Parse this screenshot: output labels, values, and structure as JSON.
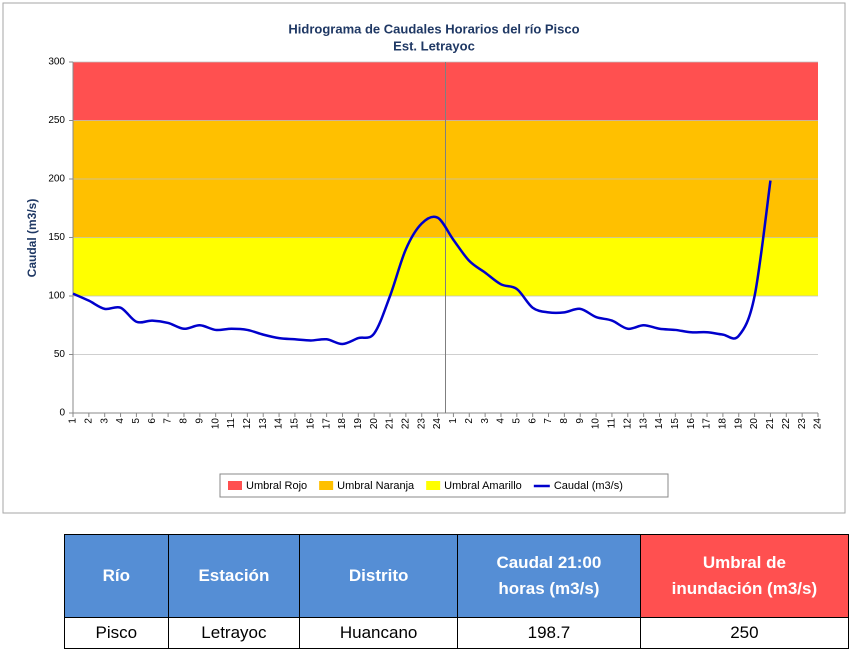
{
  "chart_data": {
    "type": "line",
    "title": "Hidrograma de Caudales Horarios del río Pisco",
    "subtitle": "Est. Letrayoc",
    "y_label": "Caudal  (m3/s)",
    "categories": [
      "1",
      "2",
      "3",
      "4",
      "5",
      "6",
      "7",
      "8",
      "9",
      "10",
      "11",
      "12",
      "13",
      "14",
      "15",
      "16",
      "17",
      "18",
      "19",
      "20",
      "21",
      "22",
      "23",
      "24",
      "1",
      "2",
      "3",
      "4",
      "5",
      "6",
      "7",
      "8",
      "9",
      "10",
      "11",
      "12",
      "13",
      "14",
      "15",
      "16",
      "17",
      "18",
      "19",
      "20",
      "21",
      "22",
      "23",
      "24"
    ],
    "series": [
      {
        "name": "Caudal (m3/s)",
        "color": "#0000cc",
        "values": [
          102,
          96,
          89,
          90,
          78,
          79,
          77,
          72,
          75,
          71,
          72,
          71,
          67,
          64,
          63,
          62,
          63,
          59,
          64,
          68,
          100,
          140,
          162,
          167,
          148,
          130,
          120,
          110,
          106,
          90,
          86,
          86,
          89,
          82,
          79,
          72,
          75,
          72,
          71,
          69,
          69,
          67,
          66,
          100,
          198.7,
          null,
          null,
          null
        ]
      }
    ],
    "thresholds": [
      {
        "name": "Umbral Rojo",
        "color": "#ff5050",
        "value": 250
      },
      {
        "name": "Umbral Naranja",
        "color": "#ffc000",
        "value": 150
      },
      {
        "name": "Umbral Amarillo",
        "color": "#ffff00",
        "value": 100
      }
    ],
    "ylim": [
      0,
      300
    ],
    "yticks": [
      0,
      50,
      100,
      150,
      200,
      250,
      300
    ],
    "grid": true
  },
  "table": {
    "headers": [
      "Río",
      "Estación",
      "Distrito",
      "Caudal 21:00 horas (m3/s)",
      "Umbral de inundación (m3/s)"
    ],
    "rows": [
      [
        "Pisco",
        "Letrayoc",
        "Huancano",
        198.7,
        250
      ]
    ]
  }
}
